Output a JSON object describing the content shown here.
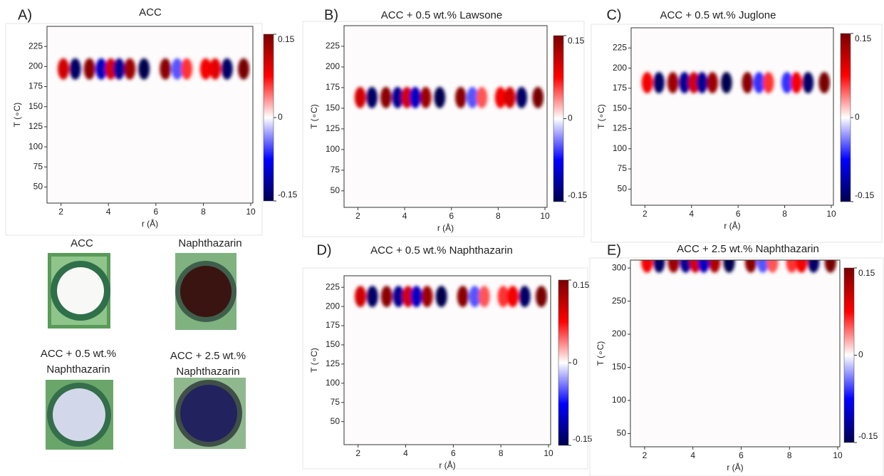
{
  "chart_data": [
    {
      "type": "heatmap",
      "panel": "A)",
      "title": "ACC",
      "xlabel": "r (Å)",
      "ylabel": "T (∘C)",
      "xlim": [
        1.5,
        10
      ],
      "xticks": [
        2,
        4,
        6,
        8,
        10
      ],
      "ylim": [
        30,
        250
      ],
      "yticks": [
        50,
        75,
        100,
        125,
        150,
        175,
        200,
        225
      ],
      "clim": [
        -0.15,
        0.15
      ],
      "cticks": [
        -0.15,
        0,
        0.15
      ],
      "band_T": 197,
      "x": [
        2.1,
        2.6,
        3.2,
        3.7,
        4.1,
        4.45,
        4.9,
        5.5,
        6.4,
        6.9,
        7.3,
        8.1,
        8.5,
        9.0,
        9.7
      ],
      "values": [
        0.1,
        -0.14,
        0.14,
        -0.1,
        0.1,
        -0.12,
        0.13,
        -0.15,
        0.14,
        -0.05,
        0.06,
        0.08,
        0.09,
        -0.14,
        0.15
      ]
    },
    {
      "type": "heatmap",
      "panel": "B)",
      "title": "ACC  +  0.5 wt.% Lawsone",
      "xlabel": "r (Å)",
      "ylabel": "T (∘C)",
      "xlim": [
        1.5,
        10
      ],
      "xticks": [
        2,
        4,
        6,
        8,
        10
      ],
      "ylim": [
        30,
        250
      ],
      "yticks": [
        50,
        75,
        100,
        125,
        150,
        175,
        200,
        225
      ],
      "clim": [
        -0.15,
        0.15
      ],
      "cticks": [
        -0.15,
        0,
        0.15
      ],
      "band_T": 163,
      "x": [
        2.1,
        2.6,
        3.2,
        3.7,
        4.1,
        4.45,
        4.9,
        5.5,
        6.4,
        6.9,
        7.3,
        8.1,
        8.5,
        9.0,
        9.7
      ],
      "values": [
        0.1,
        -0.14,
        0.14,
        -0.12,
        0.1,
        -0.1,
        0.13,
        -0.15,
        0.14,
        -0.05,
        0.05,
        0.08,
        0.1,
        -0.14,
        0.15
      ]
    },
    {
      "type": "heatmap",
      "panel": "C)",
      "title": "ACC  +  0.5 wt.% Juglone",
      "xlabel": "r (Å)",
      "ylabel": "T (∘C)",
      "xlim": [
        1.5,
        10
      ],
      "xticks": [
        2,
        4,
        6,
        8,
        10
      ],
      "ylim": [
        30,
        250
      ],
      "yticks": [
        50,
        75,
        100,
        125,
        150,
        175,
        200,
        225
      ],
      "clim": [
        -0.15,
        0.15
      ],
      "cticks": [
        -0.15,
        0,
        0.15
      ],
      "band_T": 182,
      "x": [
        2.1,
        2.6,
        3.2,
        3.7,
        4.1,
        4.45,
        4.9,
        5.5,
        6.4,
        6.9,
        7.3,
        8.1,
        8.5,
        9.0,
        9.7
      ],
      "values": [
        0.08,
        -0.14,
        0.13,
        -0.12,
        0.1,
        -0.12,
        0.13,
        -0.15,
        0.14,
        -0.06,
        0.06,
        -0.06,
        0.08,
        -0.14,
        0.15
      ]
    },
    {
      "type": "heatmap",
      "panel": "D)",
      "title": "ACC  +  0.5 wt.% Naphthazarin",
      "xlabel": "r (Å)",
      "ylabel": "T (∘C)",
      "xlim": [
        1.5,
        10
      ],
      "xticks": [
        2,
        4,
        6,
        8,
        10
      ],
      "ylim": [
        20,
        240
      ],
      "yticks": [
        50,
        75,
        100,
        125,
        150,
        175,
        200,
        225
      ],
      "clim": [
        -0.15,
        0.15
      ],
      "cticks": [
        -0.15,
        0,
        0.15
      ],
      "band_T": 213,
      "x": [
        2.1,
        2.6,
        3.2,
        3.7,
        4.1,
        4.45,
        4.9,
        5.5,
        6.4,
        6.9,
        7.3,
        8.1,
        8.5,
        9.0,
        9.7
      ],
      "values": [
        0.1,
        -0.14,
        0.14,
        -0.12,
        0.1,
        -0.1,
        0.13,
        -0.15,
        0.14,
        -0.05,
        0.05,
        0.06,
        0.08,
        -0.14,
        0.15
      ]
    },
    {
      "type": "heatmap",
      "panel": "E)",
      "title": "ACC  +  2.5 wt.% Naphthazarin",
      "xlabel": "r (Å)",
      "ylabel": "T (∘C)",
      "xlim": [
        1.5,
        10
      ],
      "xticks": [
        2,
        4,
        6,
        8,
        10
      ],
      "ylim": [
        30,
        312
      ],
      "yticks": [
        50,
        100,
        150,
        200,
        250,
        300
      ],
      "clim": [
        -0.15,
        0.15
      ],
      "cticks": [
        -0.15,
        0,
        0.15
      ],
      "band_T": 309,
      "x": [
        2.1,
        2.6,
        3.2,
        3.7,
        4.1,
        4.45,
        4.9,
        5.5,
        6.4,
        6.9,
        7.3,
        8.1,
        8.5,
        9.0,
        9.7
      ],
      "values": [
        0.08,
        -0.14,
        0.13,
        -0.12,
        0.1,
        -0.1,
        0.12,
        -0.15,
        0.14,
        -0.05,
        0.05,
        0.06,
        0.08,
        -0.14,
        0.15
      ]
    }
  ],
  "photos": [
    {
      "label": [
        "ACC"
      ]
    },
    {
      "label": [
        "Naphthazarin"
      ]
    },
    {
      "label": [
        "ACC +  0.5 wt.%",
        "Naphthazarin"
      ]
    },
    {
      "label": [
        "ACC +  2.5 wt.%",
        "Naphthazarin"
      ]
    }
  ]
}
